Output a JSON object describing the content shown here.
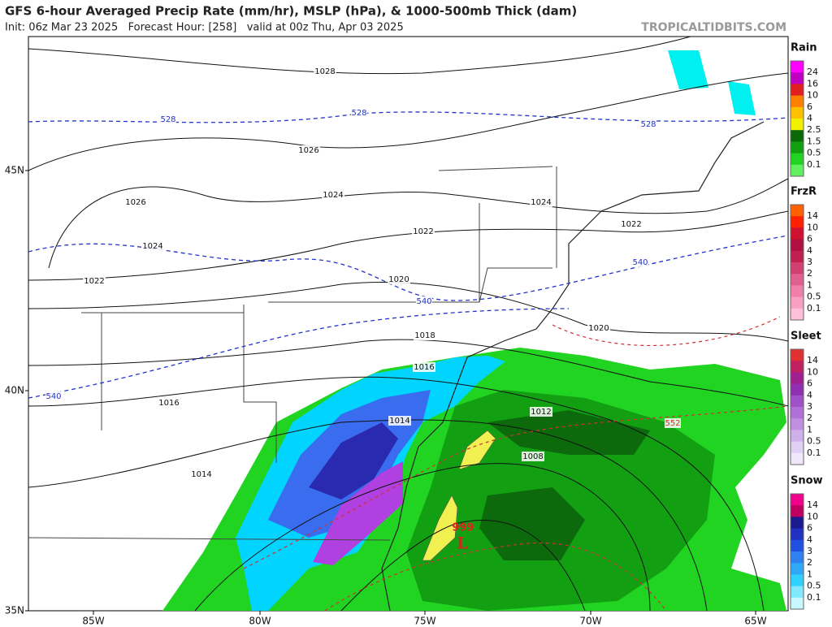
{
  "header": {
    "title": "GFS 6-hour Averaged Precip Rate (mm/hr), MSLP (hPa), & 1000-500mb Thick (dam)",
    "subtitle": "Init: 06z Mar 23 2025   Forecast Hour: [258]   valid at 00z Thu, Apr 03 2025",
    "watermark": "TROPICALTIDBITS.COM"
  },
  "legend": [
    {
      "title": "Rain",
      "labels": [
        24,
        16,
        10,
        6,
        4,
        2.5,
        1.5,
        0.5,
        0.1
      ]
    },
    {
      "title": "FrzR",
      "labels": [
        14,
        10,
        6,
        4,
        3,
        2,
        1,
        0.5,
        0.1
      ]
    },
    {
      "title": "Sleet",
      "labels": [
        14,
        10,
        6,
        4,
        3,
        2,
        1,
        0.5,
        0.1
      ]
    },
    {
      "title": "Snow",
      "labels": [
        14,
        10,
        6,
        4,
        3,
        2,
        1,
        0.5,
        0.1
      ]
    }
  ],
  "axes": {
    "lat_labels": [
      "45N",
      "40N",
      "35N"
    ],
    "lon_labels": [
      "85W",
      "80W",
      "75W",
      "70W",
      "65W"
    ]
  },
  "isobar_labels": [
    1028,
    1026,
    1026,
    1024,
    1024,
    1024,
    1022,
    1022,
    1022,
    1020,
    1020,
    1018,
    1016,
    1016,
    1014,
    1014,
    1012,
    1008
  ],
  "thickness_labels": [
    528,
    528,
    528,
    540,
    540,
    540,
    552
  ],
  "low": {
    "symbol": "L",
    "pressure": 999
  }
}
